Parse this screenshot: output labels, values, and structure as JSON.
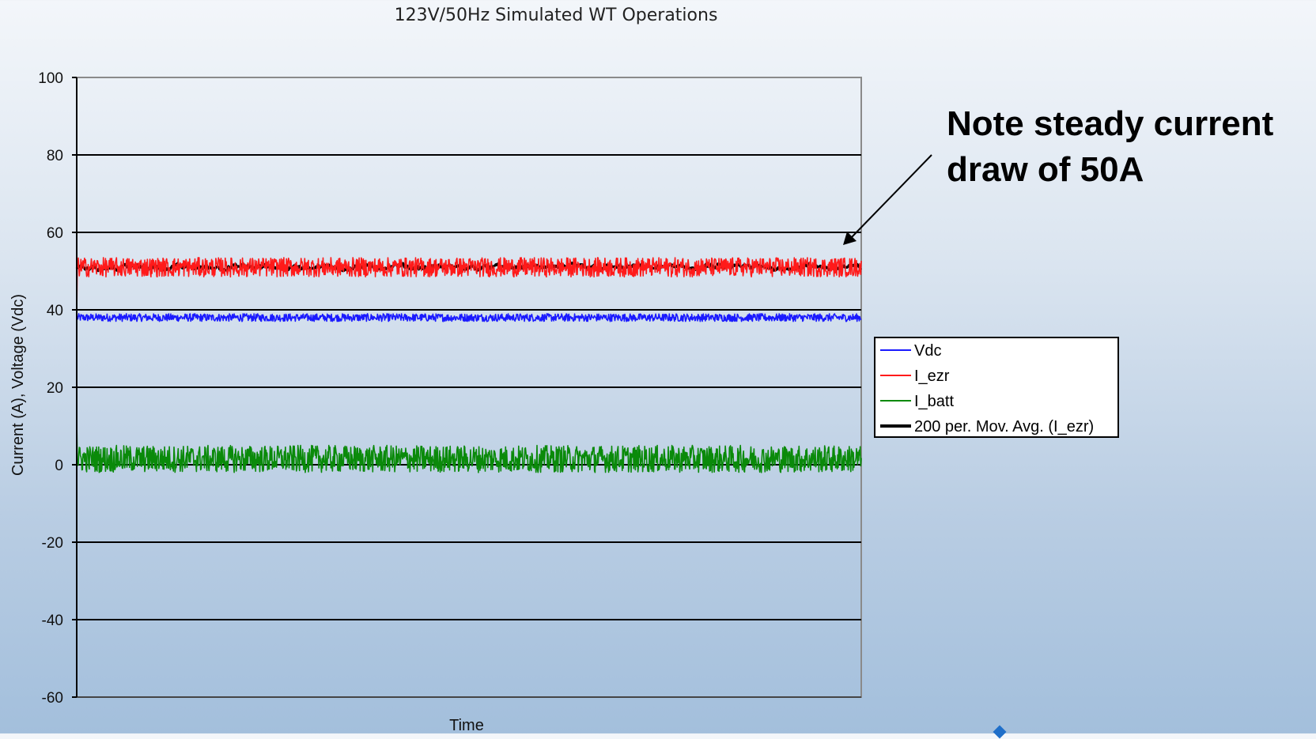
{
  "chart_data": {
    "type": "line",
    "title": "123V/50Hz Simulated WT Operations",
    "xlabel": "Time",
    "ylabel": "Current (A), Voltage (Vdc)",
    "ylim": [
      -60,
      100
    ],
    "yticks": [
      -60,
      -40,
      -20,
      0,
      20,
      40,
      60,
      80,
      100
    ],
    "grid": "horizontal",
    "legend_position": "right",
    "series": [
      {
        "name": "Vdc",
        "color": "#1a1aff",
        "style": "noisy",
        "mean": 38,
        "noise": 1,
        "start": 38
      },
      {
        "name": "I_ezr",
        "color": "#ff1a1a",
        "style": "noisy",
        "mean": 51,
        "noise": 2.5,
        "start": 38
      },
      {
        "name": "I_batt",
        "color": "#0a8a0a",
        "style": "noisy",
        "mean": 1.5,
        "noise": 3.5,
        "start": 12
      },
      {
        "name": "200 per. Mov. Avg. (I_ezr)",
        "color": "#000000",
        "style": "smooth",
        "mean": 51,
        "noise": 0.4,
        "start": 51
      }
    ]
  },
  "annotation": {
    "line1": "Note steady current",
    "line2": "draw of 50A"
  }
}
